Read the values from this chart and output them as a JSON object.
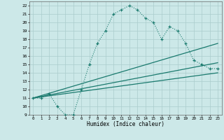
{
  "xlabel": "Humidex (Indice chaleur)",
  "xlim": [
    -0.5,
    23.5
  ],
  "ylim": [
    9,
    22.5
  ],
  "yticks": [
    9,
    10,
    11,
    12,
    13,
    14,
    15,
    16,
    17,
    18,
    19,
    20,
    21,
    22
  ],
  "xticks": [
    0,
    1,
    2,
    3,
    4,
    5,
    6,
    7,
    8,
    9,
    10,
    11,
    12,
    13,
    14,
    15,
    16,
    17,
    18,
    19,
    20,
    21,
    22,
    23
  ],
  "bg_color": "#cce8e8",
  "line_color": "#1a7a6e",
  "grid_color": "#aacccc",
  "wavy_x": [
    0,
    1,
    2,
    3,
    4,
    5,
    6,
    7,
    8,
    9,
    10,
    11,
    12,
    13,
    14,
    15,
    16,
    17,
    18,
    19,
    20,
    21,
    22,
    23
  ],
  "wavy_y": [
    11,
    11,
    11.5,
    10,
    9,
    9,
    12,
    15,
    17.5,
    19,
    21,
    21.5,
    22,
    21.5,
    20.5,
    20,
    18,
    19.5,
    19,
    17.5,
    15.5,
    15,
    14.5,
    14.5
  ],
  "line1_x": [
    0,
    23
  ],
  "line1_y": [
    11,
    17.5
  ],
  "line2_x": [
    0,
    23
  ],
  "line2_y": [
    11,
    15.2
  ],
  "line3_x": [
    0,
    23
  ],
  "line3_y": [
    11,
    14.0
  ]
}
